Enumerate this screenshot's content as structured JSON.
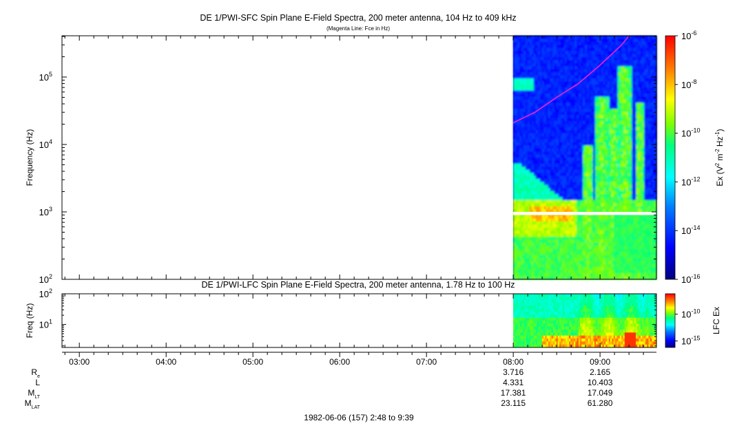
{
  "colors": {
    "fce_line": "#e020e0",
    "colormap": [
      "#00007f",
      "#0000ff",
      "#0080ff",
      "#00ffff",
      "#00ff80",
      "#80ff00",
      "#ffff00",
      "#ff8000",
      "#ff0000"
    ]
  },
  "chart_data": [
    {
      "type": "heatmap",
      "id": "sfc",
      "title": "DE 1/PWI-SFC  Spin Plane E-Field Spectra, 200 meter antenna, 104 Hz to 409 kHz",
      "subtitle": "(Magenta Line: Fce in Hz)",
      "ylabel": "Frequency (Hz)",
      "y_scale": "log",
      "ylim": [
        100,
        409000
      ],
      "y_ticks": [
        {
          "value": 100,
          "base": "10",
          "exp": "2"
        },
        {
          "value": 1000,
          "base": "10",
          "exp": "3"
        },
        {
          "value": 10000,
          "base": "10",
          "exp": "4"
        },
        {
          "value": 100000,
          "base": "10",
          "exp": "5"
        }
      ],
      "xlim": [
        "02:48",
        "09:39"
      ],
      "data_start": "08:00",
      "data_gap_hz": [
        1000,
        900
      ],
      "fce_line": {
        "label": "Fce",
        "x": [
          "08:00",
          "08:15",
          "08:30",
          "08:45",
          "09:00",
          "09:15",
          "09:20"
        ],
        "y": [
          21000,
          30000,
          50000,
          80000,
          150000,
          300000,
          409000
        ]
      },
      "colorbar": {
        "label": "Ex (V",
        "label_sup1": "2",
        "label_mid": " m",
        "label_sup2": "-2",
        "label_mid2": " Hz",
        "label_sup3": "-1",
        "label_end": ")",
        "scale": "log",
        "range": [
          1e-16,
          1e-06
        ],
        "ticks": [
          {
            "base": "10",
            "exp": "-6"
          },
          {
            "base": "10",
            "exp": "-8"
          },
          {
            "base": "10",
            "exp": "-10"
          },
          {
            "base": "10",
            "exp": "-12"
          },
          {
            "base": "10",
            "exp": "-14"
          },
          {
            "base": "10",
            "exp": "-16"
          }
        ]
      }
    },
    {
      "type": "heatmap",
      "id": "lfc",
      "title": "DE 1/PWI-LFC  Spin Plane E-Field Spectra, 200 meter antenna, 1.78 Hz to 100 Hz",
      "ylabel": "Freq (Hz)",
      "y_scale": "log",
      "ylim": [
        1.78,
        100
      ],
      "y_ticks": [
        {
          "value": 10,
          "base": "10",
          "exp": "1"
        },
        {
          "value": 100,
          "base": "10",
          "exp": "2"
        }
      ],
      "xlim": [
        "02:48",
        "09:39"
      ],
      "data_start": "08:00",
      "colorbar": {
        "label": "LFC Ex",
        "scale": "log",
        "ticks": [
          {
            "base": "10",
            "exp": "-10"
          },
          {
            "base": "10",
            "exp": "-15"
          }
        ]
      }
    }
  ],
  "x_axis": {
    "tick_labels": [
      "03:00",
      "04:00",
      "05:00",
      "06:00",
      "07:00",
      "08:00",
      "09:00"
    ],
    "footer": "1982-06-06 (157) 2:48 to 9:39"
  },
  "orbit_table": {
    "rows": [
      {
        "label": "R",
        "sub": "e",
        "values": [
          "3.716",
          "2.165"
        ]
      },
      {
        "label": "L",
        "sub": "",
        "values": [
          "4.331",
          "10.403"
        ]
      },
      {
        "label": "M",
        "sub": "LT",
        "values": [
          "17.381",
          "17.049"
        ]
      },
      {
        "label": "M",
        "sub": "LAT",
        "values": [
          "23.115",
          "61.280"
        ]
      }
    ]
  }
}
